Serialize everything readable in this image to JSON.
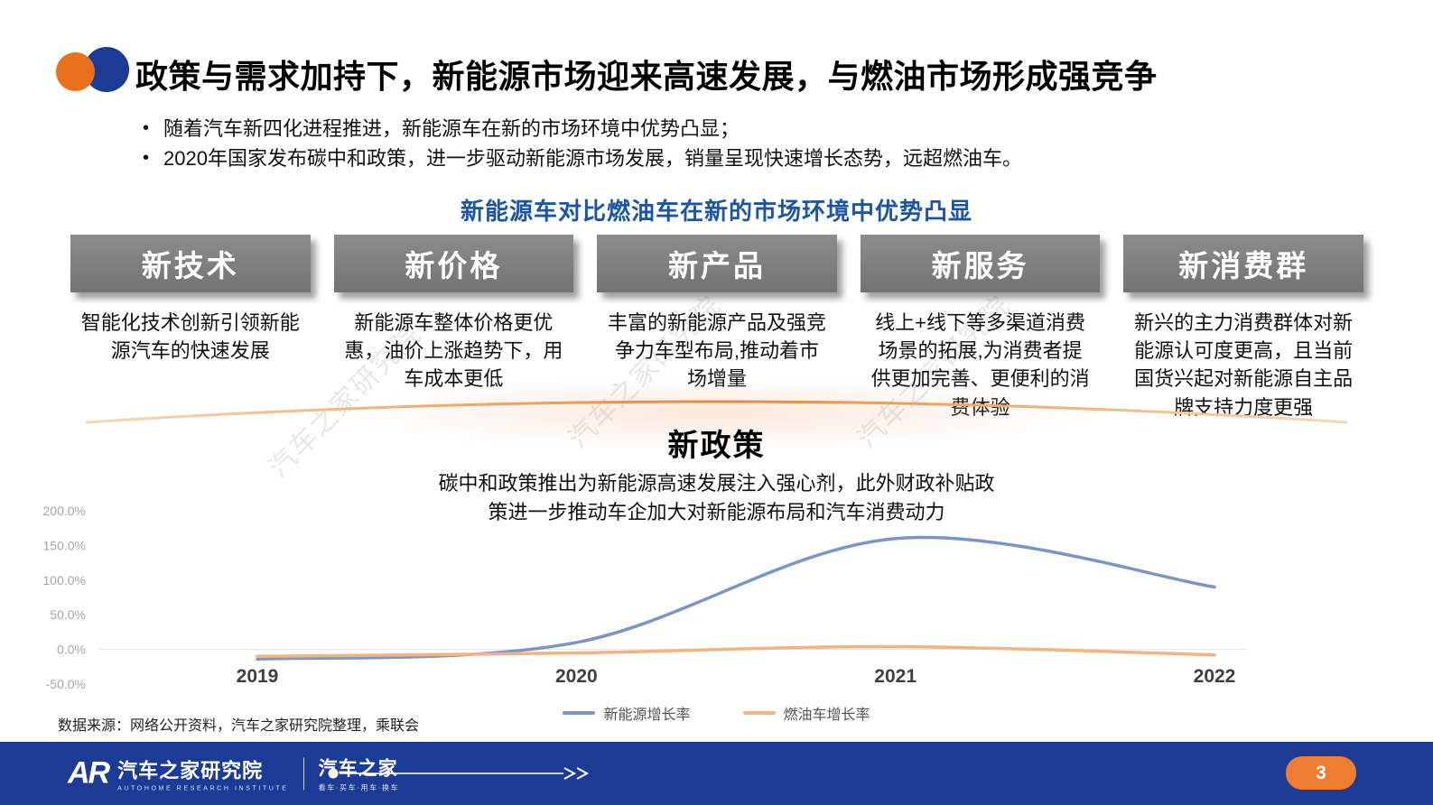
{
  "slide": {
    "title": "政策与需求加持下，新能源市场迎来高速发展，与燃油市场形成强竞争",
    "bullets": [
      "随着汽车新四化进程推进，新能源车在新的市场环境中优势凸显；",
      "2020年国家发布碳中和政策，进一步驱动新能源市场发展，销量呈现快速增长态势，远超燃油车。"
    ],
    "section_heading": "新能源车对比燃油车在新的市场环境中优势凸显"
  },
  "columns": [
    {
      "title": "新技术",
      "desc": "智能化技术创新引领新能源汽车的快速发展"
    },
    {
      "title": "新价格",
      "desc": "新能源车整体价格更优惠，油价上涨趋势下，用车成本更低"
    },
    {
      "title": "新产品",
      "desc": "丰富的新能源产品及强竞争力车型布局,推动着市场增量"
    },
    {
      "title": "新服务",
      "desc": "线上+线下等多渠道消费场景的拓展,为消费者提供更加完善、更便利的消费体验"
    },
    {
      "title": "新消费群",
      "desc": "新兴的主力消费群体对新能源认可度更高，且当前国货兴起对新能源自主品牌支持力度更强"
    }
  ],
  "policy": {
    "title": "新政策",
    "desc": "碳中和政策推出为新能源高速发展注入强心剂，此外财政补贴政策进一步推动车企加大对新能源布局和汽车消费动力"
  },
  "chart_data": {
    "type": "line",
    "title": "",
    "x": [
      "2019",
      "2020",
      "2021",
      "2022"
    ],
    "series": [
      {
        "name": "新能源增长率",
        "color": "#7B95C7",
        "values": [
          -14,
          10,
          160,
          90
        ]
      },
      {
        "name": "燃油车增长率",
        "color": "#F4B480",
        "values": [
          -10,
          -5,
          4,
          -8
        ]
      }
    ],
    "ylim": [
      -50,
      200
    ],
    "yticks": [
      {
        "label": "200.0%",
        "value": 200
      },
      {
        "label": "150.0%",
        "value": 150
      },
      {
        "label": "100.0%",
        "value": 100
      },
      {
        "label": "50.0%",
        "value": 50
      },
      {
        "label": "0.0%",
        "value": 0
      },
      {
        "label": "-50.0%",
        "value": -50
      }
    ],
    "unit": "%",
    "grid": "zero-baseline-only",
    "legend_position": "bottom"
  },
  "watermark": "汽车之家研究院",
  "source_note": "数据来源：网络公开资料，汽车之家研究院整理，乘联会",
  "footer": {
    "logo_ar": "AR",
    "logo_text": "汽车之家研究院",
    "logo_sub": "AUTOHOME RESEARCH INSTITUTE",
    "brand": "汽车之家",
    "brand_sub": "看车·买车·用车·换车",
    "page_number": "3"
  },
  "colors": {
    "accent_blue": "#1C3B96",
    "accent_orange": "#E8721C",
    "heading_blue": "#1A55A6",
    "pillar_gray": "#7F7F7F",
    "nev_line": "#7B95C7",
    "fuel_line": "#F4B480",
    "page_pill": "#ED7D31"
  }
}
